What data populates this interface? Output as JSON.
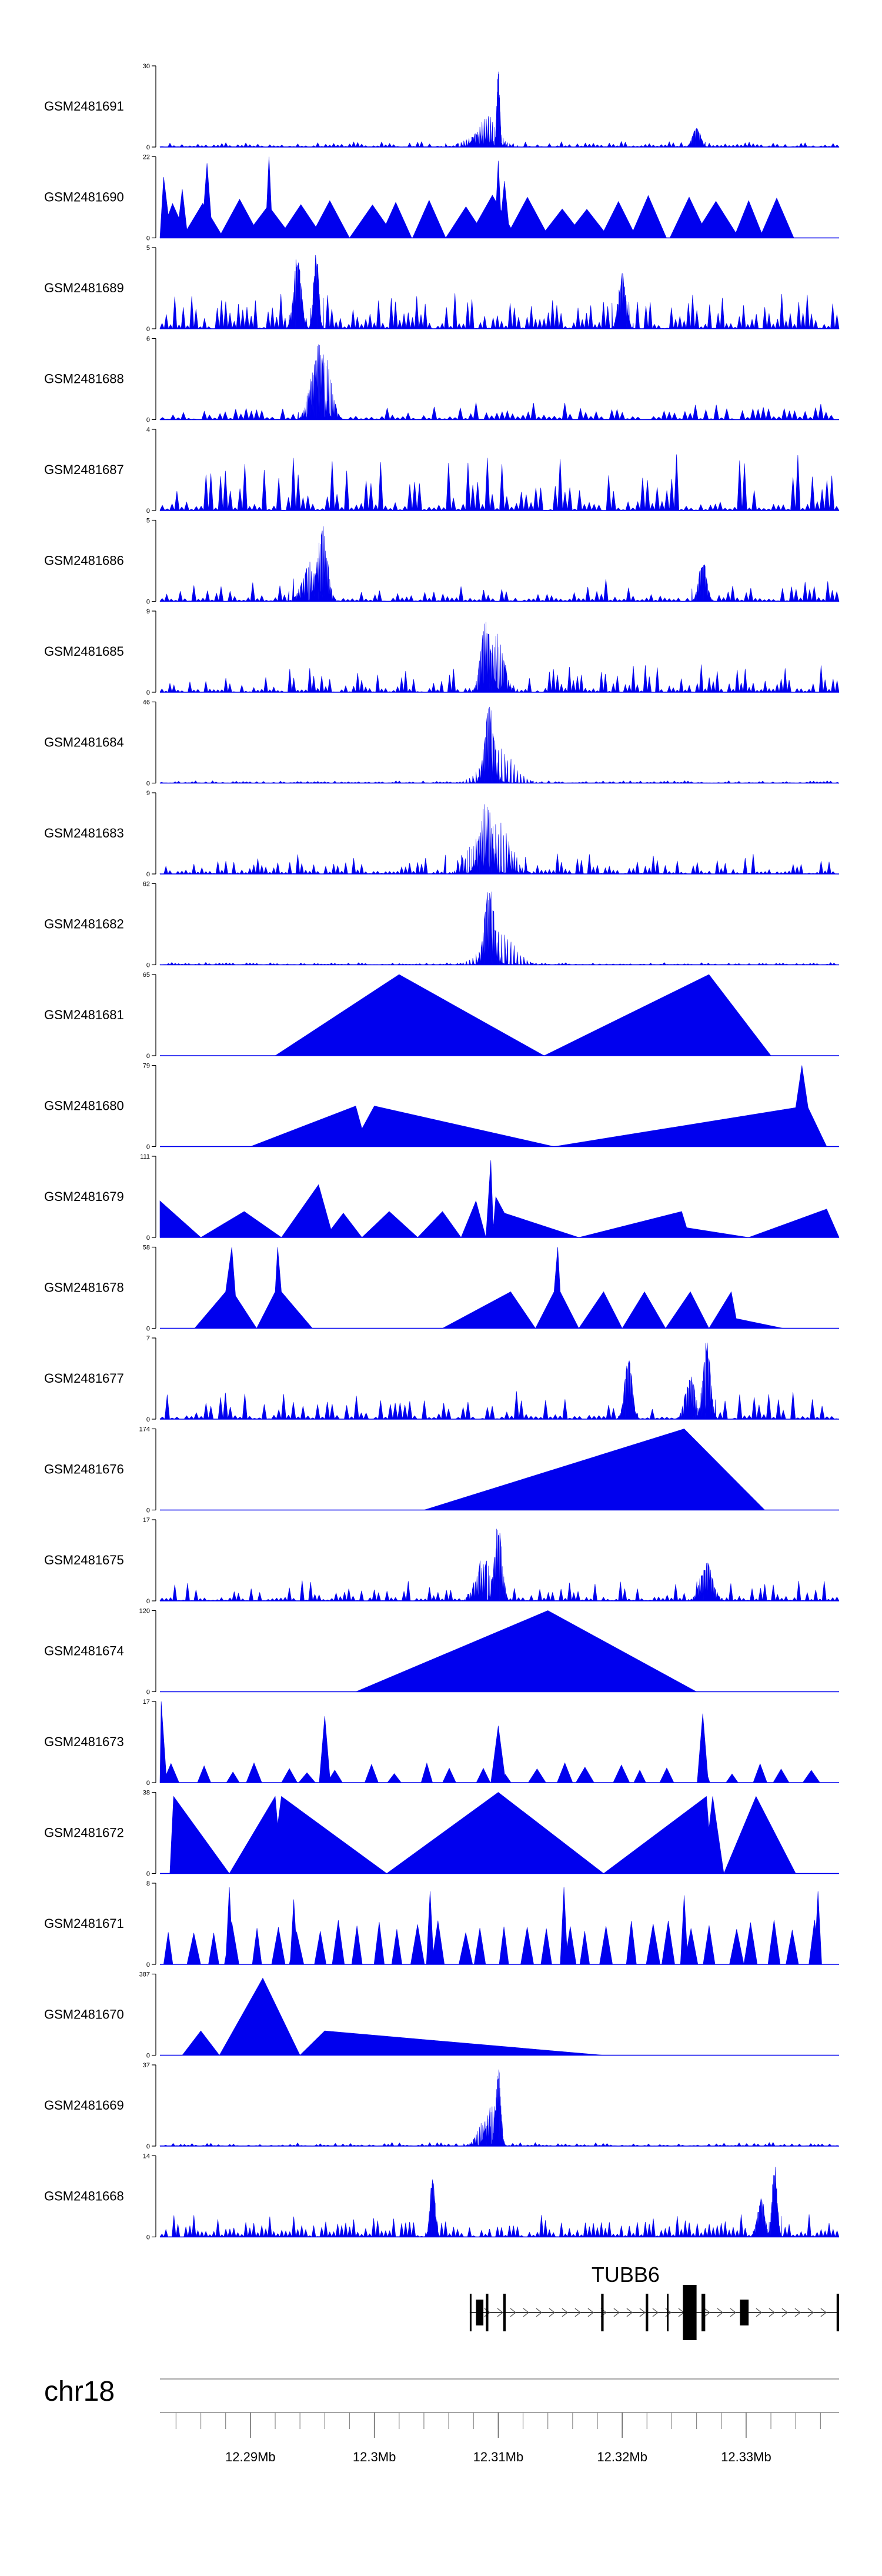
{
  "chart_data": {
    "type": "area",
    "title": "",
    "xlabel": "",
    "ylabel": "",
    "chromosome": "chr18",
    "xlim": [
      12.2827,
      12.3375
    ],
    "x_ticks": [
      12.29,
      12.3,
      12.31,
      12.32,
      12.33
    ],
    "x_tick_labels": [
      "12.29Mb",
      "12.3Mb",
      "12.31Mb",
      "12.32Mb",
      "12.33Mb"
    ],
    "x_minor_step": 0.002,
    "gene": {
      "name": "TUBB6",
      "start": 12.3077,
      "end": 12.3375,
      "exons": [
        [
          12.3077,
          12.3078
        ],
        [
          12.3082,
          12.3088
        ],
        [
          12.309,
          12.3092
        ],
        [
          12.3104,
          12.3106
        ],
        [
          12.3183,
          12.3185
        ],
        [
          12.3219,
          12.3221
        ],
        [
          12.3236,
          12.3237
        ],
        [
          12.3249,
          12.326
        ],
        [
          12.3264,
          12.3267
        ],
        [
          12.3295,
          12.3302
        ],
        [
          12.3373,
          12.3375
        ]
      ]
    },
    "series": [
      {
        "name": "GSM2481691",
        "ymax": 30,
        "style": "noise",
        "density": 170,
        "base": 0.025,
        "amp": 0.07,
        "seed": 11,
        "peaks": [
          [
            12.31,
            0.98,
            0.00012
          ],
          [
            12.3092,
            0.4,
            0.0008
          ],
          [
            12.3085,
            0.18,
            0.001
          ],
          [
            12.326,
            0.28,
            0.0003
          ]
        ]
      },
      {
        "name": "GSM2481690",
        "ymax": 22,
        "style": "sparse",
        "count": 20,
        "hmin": 0.35,
        "hmax": 0.55,
        "spread": 0.004,
        "xmax": 12.334,
        "seed": 12,
        "peaks": [
          [
            12.283,
            0.75,
            0.0004
          ],
          [
            12.2845,
            0.6,
            0.0003
          ],
          [
            12.2865,
            0.92,
            0.0003
          ],
          [
            12.2915,
            1.0,
            0.0002
          ],
          [
            12.31,
            0.95,
            0.0002
          ],
          [
            12.3105,
            0.7,
            0.0003
          ]
        ]
      },
      {
        "name": "GSM2481689",
        "ymax": 5,
        "style": "noise",
        "density": 160,
        "base": 0.15,
        "amp": 0.45,
        "seed": 13,
        "peaks": [
          [
            12.2938,
            0.95,
            0.0003
          ],
          [
            12.2953,
            1.0,
            0.0002
          ],
          [
            12.32,
            0.7,
            0.0003
          ]
        ]
      },
      {
        "name": "GSM2481688",
        "ymax": 6,
        "style": "noise",
        "density": 130,
        "base": 0.05,
        "amp": 0.22,
        "seed": 14,
        "peaks": [
          [
            12.2955,
            1.0,
            0.0004
          ],
          [
            12.296,
            0.85,
            0.0005
          ],
          [
            12.295,
            0.6,
            0.0004
          ]
        ]
      },
      {
        "name": "GSM2481687",
        "ymax": 4,
        "style": "noise",
        "density": 140,
        "base": 0.1,
        "amp": 0.7,
        "seed": 15,
        "peaks": []
      },
      {
        "name": "GSM2481686",
        "ymax": 5,
        "style": "noise",
        "density": 150,
        "base": 0.05,
        "amp": 0.3,
        "seed": 16,
        "peaks": [
          [
            12.2958,
            0.95,
            0.0004
          ],
          [
            12.2948,
            0.5,
            0.0006
          ],
          [
            12.3265,
            0.55,
            0.0003
          ]
        ]
      },
      {
        "name": "GSM2481685",
        "ymax": 9,
        "style": "noise",
        "density": 170,
        "base": 0.05,
        "amp": 0.35,
        "seed": 17,
        "peaks": [
          [
            12.309,
            0.95,
            0.0004
          ],
          [
            12.3098,
            0.75,
            0.0006
          ]
        ]
      },
      {
        "name": "GSM2481684",
        "ymax": 46,
        "style": "noise",
        "density": 200,
        "base": 0.01,
        "amp": 0.03,
        "seed": 18,
        "peaks": [
          [
            12.3093,
            1.0,
            0.0004
          ],
          [
            12.31,
            0.45,
            0.0012
          ]
        ]
      },
      {
        "name": "GSM2481683",
        "ymax": 9,
        "style": "noise",
        "density": 170,
        "base": 0.05,
        "amp": 0.25,
        "seed": 19,
        "peaks": [
          [
            12.309,
            0.95,
            0.0005
          ],
          [
            12.31,
            0.65,
            0.001
          ],
          [
            12.3082,
            0.45,
            0.0008
          ]
        ]
      },
      {
        "name": "GSM2481682",
        "ymax": 62,
        "style": "noise",
        "density": 200,
        "base": 0.01,
        "amp": 0.03,
        "seed": 20,
        "peaks": [
          [
            12.3093,
            1.0,
            0.0004
          ],
          [
            12.31,
            0.45,
            0.0012
          ]
        ]
      },
      {
        "name": "GSM2481681",
        "ymax": 65,
        "style": "points",
        "seed": 21,
        "points": [
          [
            12.292,
            0
          ],
          [
            12.302,
            1.0
          ],
          [
            12.3137,
            0
          ],
          [
            12.327,
            1.0
          ],
          [
            12.332,
            0
          ]
        ]
      },
      {
        "name": "GSM2481680",
        "ymax": 79,
        "style": "points",
        "seed": 22,
        "points": [
          [
            12.29,
            0
          ],
          [
            12.2985,
            0.5
          ],
          [
            12.299,
            0.22
          ],
          [
            12.3,
            0.5
          ],
          [
            12.3145,
            0
          ],
          [
            12.334,
            0.48
          ],
          [
            12.3345,
            1.0
          ],
          [
            12.335,
            0.48
          ],
          [
            12.3365,
            0
          ]
        ]
      },
      {
        "name": "GSM2481679",
        "ymax": 111,
        "style": "points",
        "seed": 23,
        "points": [
          [
            12.2827,
            0.45
          ],
          [
            12.286,
            0
          ],
          [
            12.2895,
            0.32
          ],
          [
            12.2925,
            0
          ],
          [
            12.2955,
            0.65
          ],
          [
            12.2965,
            0.1
          ],
          [
            12.2975,
            0.3
          ],
          [
            12.299,
            0
          ],
          [
            12.3012,
            0.32
          ],
          [
            12.3035,
            0
          ],
          [
            12.3055,
            0.32
          ],
          [
            12.307,
            0
          ],
          [
            12.3082,
            0.45
          ],
          [
            12.309,
            0
          ],
          [
            12.3094,
            0.95
          ],
          [
            12.3096,
            0.12
          ],
          [
            12.3098,
            0.5
          ],
          [
            12.3105,
            0.3
          ],
          [
            12.3165,
            0
          ],
          [
            12.3248,
            0.32
          ],
          [
            12.3252,
            0.12
          ],
          [
            12.3302,
            0
          ],
          [
            12.3365,
            0.35
          ],
          [
            12.3375,
            0
          ]
        ]
      },
      {
        "name": "GSM2481678",
        "ymax": 58,
        "style": "points",
        "seed": 24,
        "points": [
          [
            12.2855,
            0
          ],
          [
            12.288,
            0.45
          ],
          [
            12.2885,
            1.0
          ],
          [
            12.2888,
            0.4
          ],
          [
            12.2905,
            0
          ],
          [
            12.292,
            0.45
          ],
          [
            12.2922,
            1.0
          ],
          [
            12.2925,
            0.45
          ],
          [
            12.295,
            0
          ],
          [
            12.3055,
            0
          ],
          [
            12.311,
            0.45
          ],
          [
            12.313,
            0
          ],
          [
            12.3145,
            0.45
          ],
          [
            12.3148,
            1.0
          ],
          [
            12.315,
            0.45
          ],
          [
            12.3165,
            0
          ],
          [
            12.3185,
            0.45
          ],
          [
            12.32,
            0
          ],
          [
            12.3218,
            0.45
          ],
          [
            12.3235,
            0
          ],
          [
            12.3255,
            0.45
          ],
          [
            12.327,
            0
          ],
          [
            12.3288,
            0.45
          ],
          [
            12.3292,
            0.12
          ],
          [
            12.333,
            0
          ]
        ]
      },
      {
        "name": "GSM2481677",
        "ymax": 7,
        "style": "noise",
        "density": 140,
        "base": 0.05,
        "amp": 0.35,
        "seed": 25,
        "peaks": [
          [
            12.3268,
            1.0,
            0.0003
          ],
          [
            12.3205,
            0.8,
            0.0003
          ],
          [
            12.3255,
            0.55,
            0.0004
          ]
        ]
      },
      {
        "name": "GSM2481676",
        "ymax": 174,
        "style": "points",
        "seed": 26,
        "points": [
          [
            12.304,
            0
          ],
          [
            12.325,
            1.0
          ],
          [
            12.3315,
            0
          ]
        ]
      },
      {
        "name": "GSM2481675",
        "ymax": 17,
        "style": "noise",
        "density": 160,
        "base": 0.05,
        "amp": 0.25,
        "seed": 27,
        "peaks": [
          [
            12.31,
            1.0,
            0.0003
          ],
          [
            12.3088,
            0.55,
            0.0006
          ],
          [
            12.3268,
            0.5,
            0.0005
          ]
        ]
      },
      {
        "name": "GSM2481674",
        "ymax": 120,
        "style": "points",
        "seed": 28,
        "points": [
          [
            12.2985,
            0
          ],
          [
            12.314,
            1.0
          ],
          [
            12.326,
            0
          ]
        ]
      },
      {
        "name": "GSM2481673",
        "ymax": 17,
        "style": "sparse",
        "count": 24,
        "hmin": 0.1,
        "hmax": 0.25,
        "spread": 0.0015,
        "xmax": 12.3363,
        "seed": 29,
        "peaks": [
          [
            12.2828,
            1.0,
            0.0003
          ],
          [
            12.296,
            0.82,
            0.0003
          ],
          [
            12.31,
            0.7,
            0.0004
          ],
          [
            12.3265,
            0.85,
            0.0003
          ]
        ]
      },
      {
        "name": "GSM2481672",
        "ymax": 38,
        "style": "points",
        "seed": 30,
        "points": [
          [
            12.2835,
            0
          ],
          [
            12.2838,
            0.95
          ],
          [
            12.2883,
            0
          ],
          [
            12.292,
            0.95
          ],
          [
            12.2922,
            0.6
          ],
          [
            12.2925,
            0.95
          ],
          [
            12.301,
            0
          ],
          [
            12.31,
            1.0
          ],
          [
            12.3185,
            0
          ],
          [
            12.3268,
            0.95
          ],
          [
            12.327,
            0.55
          ],
          [
            12.3273,
            0.95
          ],
          [
            12.3282,
            0
          ],
          [
            12.3308,
            0.95
          ],
          [
            12.334,
            0
          ]
        ]
      },
      {
        "name": "GSM2481671",
        "ymax": 8,
        "style": "sparse",
        "count": 32,
        "hmin": 0.38,
        "hmax": 0.55,
        "spread": 0.0012,
        "xmax": 12.3365,
        "seed": 31,
        "peaks": [
          [
            12.2883,
            0.95,
            0.0002
          ],
          [
            12.2935,
            0.8,
            0.0002
          ],
          [
            12.3045,
            0.9,
            0.0002
          ],
          [
            12.3153,
            0.95,
            0.0002
          ],
          [
            12.325,
            0.85,
            0.0002
          ],
          [
            12.3358,
            0.9,
            0.0002
          ]
        ]
      },
      {
        "name": "GSM2481670",
        "ymax": 387,
        "style": "points",
        "seed": 32,
        "points": [
          [
            12.2845,
            0
          ],
          [
            12.286,
            0.3
          ],
          [
            12.2875,
            0
          ],
          [
            12.291,
            0.95
          ],
          [
            12.294,
            0
          ],
          [
            12.296,
            0.3
          ],
          [
            12.3185,
            0
          ]
        ]
      },
      {
        "name": "GSM2481669",
        "ymax": 37,
        "style": "noise",
        "density": 180,
        "base": 0.015,
        "amp": 0.05,
        "seed": 33,
        "peaks": [
          [
            12.31,
            1.0,
            0.0002
          ],
          [
            12.3095,
            0.55,
            0.0004
          ],
          [
            12.309,
            0.35,
            0.0006
          ]
        ]
      },
      {
        "name": "GSM2481668",
        "ymax": 14,
        "style": "noise",
        "density": 170,
        "base": 0.1,
        "amp": 0.28,
        "seed": 34,
        "peaks": [
          [
            12.3323,
            0.95,
            0.0002
          ],
          [
            12.3047,
            0.75,
            0.0002
          ],
          [
            12.3312,
            0.5,
            0.0003
          ]
        ]
      }
    ]
  }
}
